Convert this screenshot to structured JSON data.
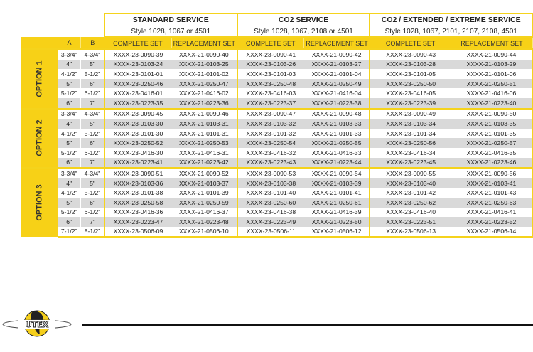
{
  "header": {
    "services": [
      {
        "title": "STANDARD SERVICE",
        "style": "Style 1028, 1067 or 4501"
      },
      {
        "title": "CO2 SERVICE",
        "style": "Style 1028, 1067, 2108 or 4501"
      },
      {
        "title": "CO2 / EXTENDED / EXTREME SERVICE",
        "style": "Style 1028, 1067, 2101, 2107, 2108, 4501"
      }
    ],
    "col_a": "A",
    "col_b": "B",
    "complete": "COMPLETE SET",
    "replacement": "REPLACEMENT SET"
  },
  "options": [
    {
      "label": "OPTION 1",
      "rows": [
        [
          "3-3/4\"",
          "4-3/4\"",
          "XXXX-23-0090-39",
          "XXXX-21-0090-40",
          "XXXX-23-0090-41",
          "XXXX-21-0090-42",
          "XXXX-23-0090-43",
          "XXXX-21-0090-44"
        ],
        [
          "4\"",
          "5\"",
          "XXXX-23-0103-24",
          "XXXX-21-0103-25",
          "XXXX-23-0103-26",
          "XXXX-21-0103-27",
          "XXXX-23-0103-28",
          "XXXX-21-0103-29"
        ],
        [
          "4-1/2\"",
          "5-1/2\"",
          "XXXX-23-0101-01",
          "XXXX-21-0101-02",
          "XXXX-23-0101-03",
          "XXXX-21-0101-04",
          "XXXX-23-0101-05",
          "XXXX-21-0101-06"
        ],
        [
          "5\"",
          "6\"",
          "XXXX-23-0250-46",
          "XXXX-21-0250-47",
          "XXXX-23-0250-48",
          "XXXX-21-0250-49",
          "XXXX-23-0250-50",
          "XXXX-21-0250-51"
        ],
        [
          "5-1/2\"",
          "6-1/2\"",
          "XXXX-23-0416-01",
          "XXXX-21-0416-02",
          "XXXX-23-0416-03",
          "XXXX-21-0416-04",
          "XXXX-23-0416-05",
          "XXXX-21-0416-06"
        ],
        [
          "6\"",
          "7\"",
          "XXXX-23-0223-35",
          "XXXX-21-0223-36",
          "XXXX-23-0223-37",
          "XXXX-21-0223-38",
          "XXXX-23-0223-39",
          "XXXX-21-0223-40"
        ]
      ]
    },
    {
      "label": "OPTION 2",
      "rows": [
        [
          "3-3/4\"",
          "4-3/4\"",
          "XXXX-23-0090-45",
          "XXXX-21-0090-46",
          "XXXX-23-0090-47",
          "XXXX-21-0090-48",
          "XXXX-23-0090-49",
          "XXXX-21-0090-50"
        ],
        [
          "4\"",
          "5\"",
          "XXXX-23-0103-30",
          "XXXX-21-0103-31",
          "XXXX-23-0103-32",
          "XXXX-21-0103-33",
          "XXXX-23-0103-34",
          "XXXX-21-0103-35"
        ],
        [
          "4-1/2\"",
          "5-1/2\"",
          "XXXX-23-0101-30",
          "XXXX-21-0101-31",
          "XXXX-23-0101-32",
          "XXXX-21-0101-33",
          "XXXX-23-0101-34",
          "XXXX-21-0101-35"
        ],
        [
          "5\"",
          "6\"",
          "XXXX-23-0250-52",
          "XXXX-21-0250-53",
          "XXXX-23-0250-54",
          "XXXX-21-0250-55",
          "XXXX-23-0250-56",
          "XXXX-21-0250-57"
        ],
        [
          "5-1/2\"",
          "6-1/2\"",
          "XXXX-23-0416-30",
          "XXXX-21-0416-31",
          "XXXX-23-0416-32",
          "XXXX-21-0416-33",
          "XXXX-23-0416-34",
          "XXXX-21-0416-35"
        ],
        [
          "6\"",
          "7\"",
          "XXXX-23-0223-41",
          "XXXX-21-0223-42",
          "XXXX-23-0223-43",
          "XXXX-21-0223-44",
          "XXXX-23-0223-45",
          "XXXX-21-0223-46"
        ]
      ]
    },
    {
      "label": "OPTION 3",
      "rows": [
        [
          "3-3/4\"",
          "4-3/4\"",
          "XXXX-23-0090-51",
          "XXXX-21-0090-52",
          "XXXX-23-0090-53",
          "XXXX-21-0090-54",
          "XXXX-23-0090-55",
          "XXXX-21-0090-56"
        ],
        [
          "4\"",
          "5\"",
          "XXXX-23-0103-36",
          "XXXX-21-0103-37",
          "XXXX-23-0103-38",
          "XXXX-21-0103-39",
          "XXXX-23-0103-40",
          "XXXX-21-0103-41"
        ],
        [
          "4-1/2\"",
          "5-1/2\"",
          "XXXX-23-0101-38",
          "XXXX-21-0101-39",
          "XXXX-23-0101-40",
          "XXXX-21-0101-41",
          "XXXX-23-0101-42",
          "XXXX-21-0101-43"
        ],
        [
          "5\"",
          "6\"",
          "XXXX-23-0250-58",
          "XXXX-21-0250-59",
          "XXXX-23-0250-60",
          "XXXX-21-0250-61",
          "XXXX-23-0250-62",
          "XXXX-21-0250-63"
        ],
        [
          "5-1/2\"",
          "6-1/2\"",
          "XXXX-23-0416-36",
          "XXXX-21-0416-37",
          "XXXX-23-0416-38",
          "XXXX-21-0416-39",
          "XXXX-23-0416-40",
          "XXXX-21-0416-41"
        ],
        [
          "6\"",
          "7\"",
          "XXXX-23-0223-47",
          "XXXX-21-0223-48",
          "XXXX-23-0223-49",
          "XXXX-21-0223-50",
          "XXXX-23-0223-51",
          "XXXX-21-0223-52"
        ],
        [
          "7-1/2\"",
          "8-1/2\"",
          "XXXX-23-0506-09",
          "XXXX-21-0506-10",
          "XXXX-23-0506-11",
          "XXXX-21-0506-12",
          "XXXX-23-0506-13",
          "XXXX-21-0506-14"
        ]
      ]
    }
  ],
  "logo": {
    "text": "UTEX"
  },
  "colors": {
    "accent": "#f7d117",
    "stripe": "#d9d9d9"
  }
}
